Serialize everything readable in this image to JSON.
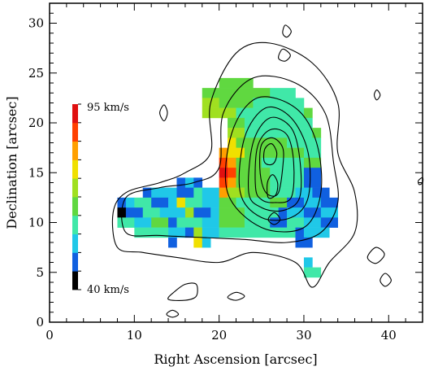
{
  "chart_data": {
    "type": "heatmap",
    "title": "",
    "xlabel": "Right Ascension [arcsec]",
    "ylabel": "Declination [arcsec]",
    "xlim": [
      0,
      44
    ],
    "ylim": [
      0,
      32
    ],
    "xticks": [
      0,
      10,
      20,
      30,
      40
    ],
    "yticks": [
      0,
      5,
      10,
      15,
      20,
      25,
      30
    ],
    "grid": false,
    "colorbar": {
      "min_label": "40 km/s",
      "max_label": "95 km/s",
      "min_value": 40,
      "max_value": 95,
      "unit": "km/s",
      "colors": [
        "#000000",
        "#1060e0",
        "#20c8e8",
        "#40e8a8",
        "#60d840",
        "#a0e020",
        "#f0e000",
        "#ffa000",
        "#ff4000",
        "#e01010"
      ]
    },
    "velocity_map": {
      "cell_size": 1,
      "rows": [
        {
          "dec": 24,
          "cells": [
            [
              20,
              24,
              4
            ]
          ]
        },
        {
          "dec": 23,
          "cells": [
            [
              18,
              20,
              4
            ],
            [
              20,
              26,
              4
            ],
            [
              26,
              29,
              3
            ]
          ]
        },
        {
          "dec": 22,
          "cells": [
            [
              18,
              20,
              5
            ],
            [
              20,
              24,
              4
            ],
            [
              24,
              30,
              3
            ]
          ]
        },
        {
          "dec": 21,
          "cells": [
            [
              18,
              20,
              5
            ],
            [
              20,
              22,
              5
            ],
            [
              22,
              30,
              3
            ],
            [
              30,
              31,
              4
            ]
          ]
        },
        {
          "dec": 20,
          "cells": [
            [
              21,
              23,
              4
            ],
            [
              23,
              31,
              3
            ]
          ]
        },
        {
          "dec": 19,
          "cells": [
            [
              21,
              23,
              5
            ],
            [
              23,
              31,
              3
            ],
            [
              31,
              32,
              4
            ]
          ]
        },
        {
          "dec": 18,
          "cells": [
            [
              21,
              22,
              6
            ],
            [
              22,
              28,
              4
            ],
            [
              28,
              32,
              3
            ]
          ]
        },
        {
          "dec": 17,
          "cells": [
            [
              20,
              21,
              7
            ],
            [
              21,
              23,
              6
            ],
            [
              23,
              30,
              4
            ],
            [
              30,
              32,
              3
            ]
          ]
        },
        {
          "dec": 16,
          "cells": [
            [
              20,
              21,
              8
            ],
            [
              21,
              22,
              7
            ],
            [
              22,
              25,
              4
            ],
            [
              25,
              30,
              3
            ],
            [
              30,
              32,
              4
            ]
          ]
        },
        {
          "dec": 15,
          "cells": [
            [
              20,
              21,
              9
            ],
            [
              21,
              22,
              8
            ],
            [
              22,
              26,
              4
            ],
            [
              26,
              30,
              3
            ],
            [
              30,
              32,
              1
            ]
          ]
        },
        {
          "dec": 14,
          "cells": [
            [
              15,
              16,
              1
            ],
            [
              16,
              17,
              2
            ],
            [
              17,
              18,
              1
            ],
            [
              20,
              21,
              8
            ],
            [
              21,
              22,
              7
            ],
            [
              22,
              26,
              4
            ],
            [
              26,
              30,
              3
            ],
            [
              30,
              32,
              1
            ]
          ]
        },
        {
          "dec": 13,
          "cells": [
            [
              11,
              12,
              1
            ],
            [
              12,
              15,
              2
            ],
            [
              15,
              17,
              1
            ],
            [
              17,
              18,
              3
            ],
            [
              18,
              20,
              2
            ],
            [
              20,
              21,
              7
            ],
            [
              21,
              23,
              5
            ],
            [
              23,
              26,
              4
            ],
            [
              26,
              29,
              3
            ],
            [
              29,
              31,
              2
            ],
            [
              31,
              33,
              1
            ]
          ]
        },
        {
          "dec": 12,
          "cells": [
            [
              8,
              9,
              1
            ],
            [
              9,
              10,
              2
            ],
            [
              10,
              12,
              3
            ],
            [
              12,
              14,
              1
            ],
            [
              14,
              15,
              2
            ],
            [
              15,
              16,
              6
            ],
            [
              16,
              18,
              3
            ],
            [
              18,
              20,
              2
            ],
            [
              20,
              22,
              4
            ],
            [
              22,
              26,
              3
            ],
            [
              26,
              28,
              4
            ],
            [
              28,
              30,
              1
            ],
            [
              30,
              32,
              2
            ],
            [
              32,
              34,
              1
            ]
          ]
        },
        {
          "dec": 11,
          "cells": [
            [
              8,
              9,
              0
            ],
            [
              9,
              11,
              1
            ],
            [
              11,
              13,
              3
            ],
            [
              13,
              16,
              2
            ],
            [
              16,
              17,
              5
            ],
            [
              17,
              19,
              1
            ],
            [
              19,
              20,
              2
            ],
            [
              20,
              23,
              4
            ],
            [
              23,
              27,
              3
            ],
            [
              27,
              28,
              1
            ],
            [
              28,
              30,
              2
            ],
            [
              30,
              32,
              1
            ],
            [
              32,
              34,
              2
            ]
          ]
        },
        {
          "dec": 10,
          "cells": [
            [
              8,
              10,
              3
            ],
            [
              10,
              12,
              2
            ],
            [
              12,
              14,
              4
            ],
            [
              14,
              15,
              1
            ],
            [
              15,
              18,
              3
            ],
            [
              18,
              20,
              2
            ],
            [
              20,
              23,
              4
            ],
            [
              23,
              26,
              3
            ],
            [
              26,
              28,
              1
            ],
            [
              28,
              30,
              3
            ],
            [
              30,
              32,
              2
            ],
            [
              32,
              34,
              1
            ]
          ]
        },
        {
          "dec": 9,
          "cells": [
            [
              10,
              14,
              3
            ],
            [
              14,
              16,
              2
            ],
            [
              16,
              17,
              1
            ],
            [
              17,
              18,
              5
            ],
            [
              18,
              20,
              2
            ],
            [
              20,
              29,
              3
            ],
            [
              29,
              30,
              1
            ],
            [
              30,
              33,
              2
            ]
          ]
        },
        {
          "dec": 8,
          "cells": [
            [
              14,
              15,
              1
            ],
            [
              17,
              18,
              6
            ],
            [
              18,
              19,
              2
            ],
            [
              29,
              31,
              1
            ]
          ]
        },
        {
          "dec": 6,
          "cells": [
            [
              30,
              31,
              2
            ]
          ]
        },
        {
          "dec": 5,
          "cells": [
            [
              30,
              32,
              3
            ]
          ]
        }
      ]
    },
    "contours": [
      {
        "level": 1,
        "points": [
          [
            8,
            7.5
          ],
          [
            7.5,
            11
          ],
          [
            9,
            13
          ],
          [
            13,
            14
          ],
          [
            16,
            15
          ],
          [
            19,
            17
          ],
          [
            19,
            22
          ],
          [
            22,
            27
          ],
          [
            26,
            28
          ],
          [
            31,
            26
          ],
          [
            34,
            22
          ],
          [
            34,
            17
          ],
          [
            36,
            13
          ],
          [
            36,
            9
          ],
          [
            33,
            6
          ],
          [
            31,
            3.5
          ],
          [
            29,
            6
          ],
          [
            24,
            7
          ],
          [
            20,
            6
          ],
          [
            15,
            6.5
          ],
          [
            11,
            7
          ]
        ]
      },
      {
        "level": 2,
        "points": [
          [
            9,
            9
          ],
          [
            9,
            12.5
          ],
          [
            13,
            13.5
          ],
          [
            17,
            14
          ],
          [
            20,
            15.5
          ],
          [
            20.5,
            21
          ],
          [
            24,
            24.5
          ],
          [
            29,
            24
          ],
          [
            32.5,
            21
          ],
          [
            33.5,
            16
          ],
          [
            34,
            12
          ],
          [
            32,
            9
          ],
          [
            28,
            8
          ],
          [
            23,
            8.3
          ],
          [
            18,
            8.5
          ],
          [
            13,
            8.7
          ]
        ]
      },
      {
        "level": 3,
        "points": [
          [
            21,
            13
          ],
          [
            21.5,
            19
          ],
          [
            24.5,
            22.5
          ],
          [
            29,
            21.5
          ],
          [
            31.5,
            18
          ],
          [
            32,
            13
          ],
          [
            30,
            9.5
          ],
          [
            25,
            9.5
          ]
        ]
      },
      {
        "level": 4,
        "points": [
          [
            22.5,
            13
          ],
          [
            23,
            18.5
          ],
          [
            25.5,
            21.5
          ],
          [
            28.5,
            20.5
          ],
          [
            30.5,
            17
          ],
          [
            30.5,
            12.5
          ],
          [
            28.5,
            10.5
          ],
          [
            25,
            10.5
          ]
        ]
      },
      {
        "level": 5,
        "points": [
          [
            23.5,
            13
          ],
          [
            24,
            18
          ],
          [
            26,
            20.5
          ],
          [
            28.5,
            19.5
          ],
          [
            29.5,
            16.5
          ],
          [
            29.5,
            12.5
          ],
          [
            27.5,
            11.2
          ],
          [
            25,
            11.5
          ]
        ]
      },
      {
        "level": 6,
        "points": [
          [
            24.3,
            13.5
          ],
          [
            24.5,
            17.5
          ],
          [
            26,
            19.3
          ],
          [
            28,
            18.8
          ],
          [
            28.8,
            16
          ],
          [
            28.5,
            12.5
          ],
          [
            26.5,
            12
          ],
          [
            25,
            12.3
          ]
        ]
      },
      {
        "level": 7,
        "points": [
          [
            24.8,
            15.5
          ],
          [
            25,
            17.8
          ],
          [
            26.3,
            18.5
          ],
          [
            27.5,
            17.5
          ],
          [
            27.5,
            15.5
          ],
          [
            27,
            13
          ],
          [
            26,
            12.7
          ],
          [
            25.2,
            13.5
          ]
        ]
      },
      {
        "level": 8,
        "points": [
          [
            25.3,
            16.2
          ],
          [
            25.4,
            17.4
          ],
          [
            26.2,
            17.9
          ],
          [
            26.8,
            17
          ],
          [
            26.5,
            16
          ],
          [
            25.8,
            15.8
          ]
        ]
      },
      {
        "level": 9,
        "points": [
          [
            25.8,
            12.5
          ],
          [
            25.7,
            14
          ],
          [
            26.3,
            14.8
          ],
          [
            26.9,
            14
          ],
          [
            26.7,
            12.8
          ]
        ]
      },
      {
        "level": 1,
        "points": [
          [
            14,
            2.3
          ],
          [
            14.8,
            3.1
          ],
          [
            16,
            3.8
          ],
          [
            17.3,
            3.8
          ],
          [
            17.3,
            2.6
          ],
          [
            16,
            2.2
          ]
        ]
      },
      {
        "level": 1,
        "points": [
          [
            21,
            2.5
          ],
          [
            22,
            3
          ],
          [
            23,
            2.6
          ],
          [
            22,
            2.2
          ]
        ]
      },
      {
        "level": 1,
        "points": [
          [
            13.8,
            0.8
          ],
          [
            14.5,
            1.2
          ],
          [
            15.2,
            0.8
          ],
          [
            14.5,
            0.5
          ]
        ]
      },
      {
        "level": 1,
        "points": [
          [
            37.5,
            6.5
          ],
          [
            38.5,
            7.5
          ],
          [
            39.5,
            6.8
          ],
          [
            38.5,
            5.9
          ]
        ]
      },
      {
        "level": 1,
        "points": [
          [
            39,
            4.2
          ],
          [
            39.6,
            4.9
          ],
          [
            40.3,
            4.2
          ],
          [
            39.6,
            3.6
          ]
        ]
      },
      {
        "level": 1,
        "points": [
          [
            25.8,
            10.3
          ],
          [
            26.5,
            11
          ],
          [
            27.2,
            10.3
          ],
          [
            26.5,
            9.8
          ]
        ]
      },
      {
        "level": 1,
        "points": [
          [
            27.5,
            29
          ],
          [
            27.8,
            29.8
          ],
          [
            28.5,
            29.2
          ],
          [
            28,
            28.6
          ]
        ]
      },
      {
        "level": 1,
        "points": [
          [
            27,
            26.5
          ],
          [
            27.5,
            27.4
          ],
          [
            28.4,
            26.8
          ],
          [
            27.8,
            26.2
          ]
        ]
      },
      {
        "level": 1,
        "points": [
          [
            13,
            21
          ],
          [
            13.5,
            21.8
          ],
          [
            13.9,
            21
          ],
          [
            13.5,
            20.2
          ]
        ]
      },
      {
        "level": 1,
        "points": [
          [
            38.3,
            22.8
          ],
          [
            38.6,
            23.3
          ],
          [
            39,
            22.8
          ],
          [
            38.6,
            22.3
          ]
        ]
      },
      {
        "level": 1,
        "points": [
          [
            43.5,
            14.2
          ],
          [
            44,
            14.5
          ],
          [
            44,
            14
          ],
          [
            43.6,
            13.8
          ]
        ]
      }
    ]
  }
}
